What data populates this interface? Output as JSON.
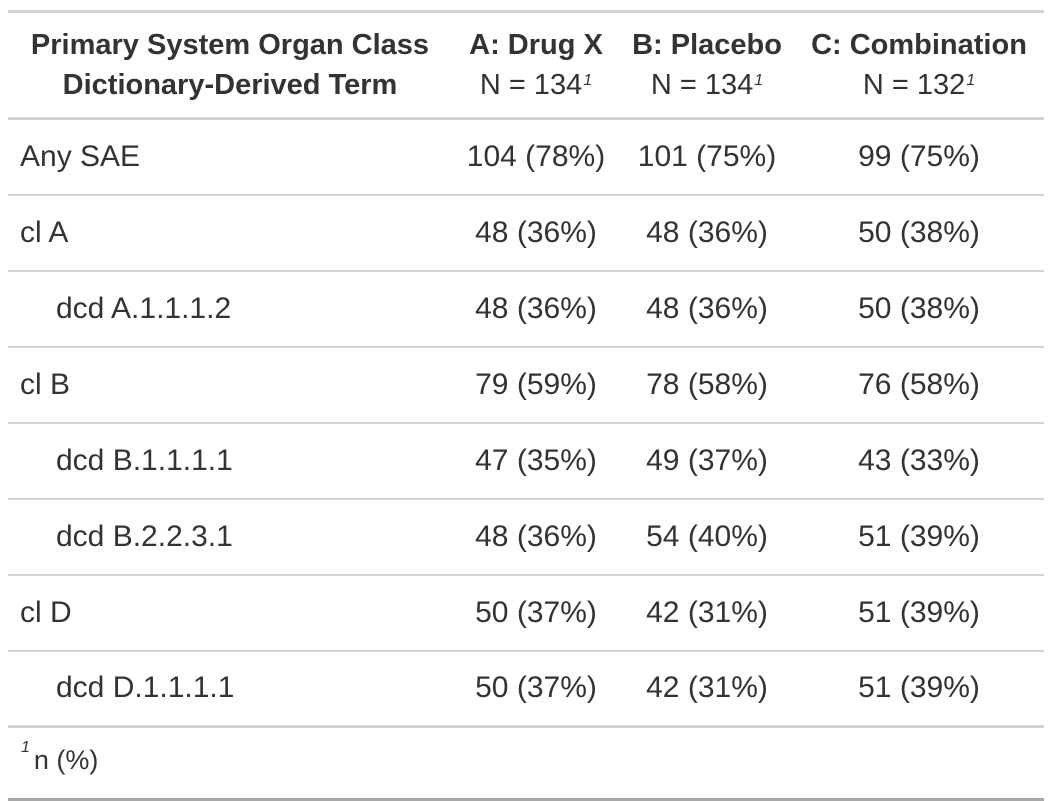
{
  "header": {
    "label_line1": "Primary System Organ Class",
    "label_line2": "Dictionary-Derived Term",
    "columns": [
      {
        "name": "A: Drug X",
        "n": "N = 134",
        "footnote_mark": "1"
      },
      {
        "name": "B: Placebo",
        "n": "N = 134",
        "footnote_mark": "1"
      },
      {
        "name": "C: Combination",
        "n": "N = 132",
        "footnote_mark": "1"
      }
    ]
  },
  "rows": [
    {
      "label": "Any SAE",
      "indent": false,
      "values": [
        "104 (78%)",
        "101 (75%)",
        "99 (75%)"
      ]
    },
    {
      "label": "cl A",
      "indent": false,
      "values": [
        "48 (36%)",
        "48 (36%)",
        "50 (38%)"
      ]
    },
    {
      "label": "dcd A.1.1.1.2",
      "indent": true,
      "values": [
        "48 (36%)",
        "48 (36%)",
        "50 (38%)"
      ]
    },
    {
      "label": "cl B",
      "indent": false,
      "values": [
        "79 (59%)",
        "78 (58%)",
        "76 (58%)"
      ]
    },
    {
      "label": "dcd B.1.1.1.1",
      "indent": true,
      "values": [
        "47 (35%)",
        "49 (37%)",
        "43 (33%)"
      ]
    },
    {
      "label": "dcd B.2.2.3.1",
      "indent": true,
      "values": [
        "48 (36%)",
        "54 (40%)",
        "51 (39%)"
      ]
    },
    {
      "label": "cl D",
      "indent": false,
      "values": [
        "50 (37%)",
        "42 (31%)",
        "51 (39%)"
      ]
    },
    {
      "label": "dcd D.1.1.1.1",
      "indent": true,
      "values": [
        "50 (37%)",
        "42 (31%)",
        "51 (39%)"
      ]
    }
  ],
  "footnote": {
    "mark": "1",
    "text": "n (%)"
  }
}
